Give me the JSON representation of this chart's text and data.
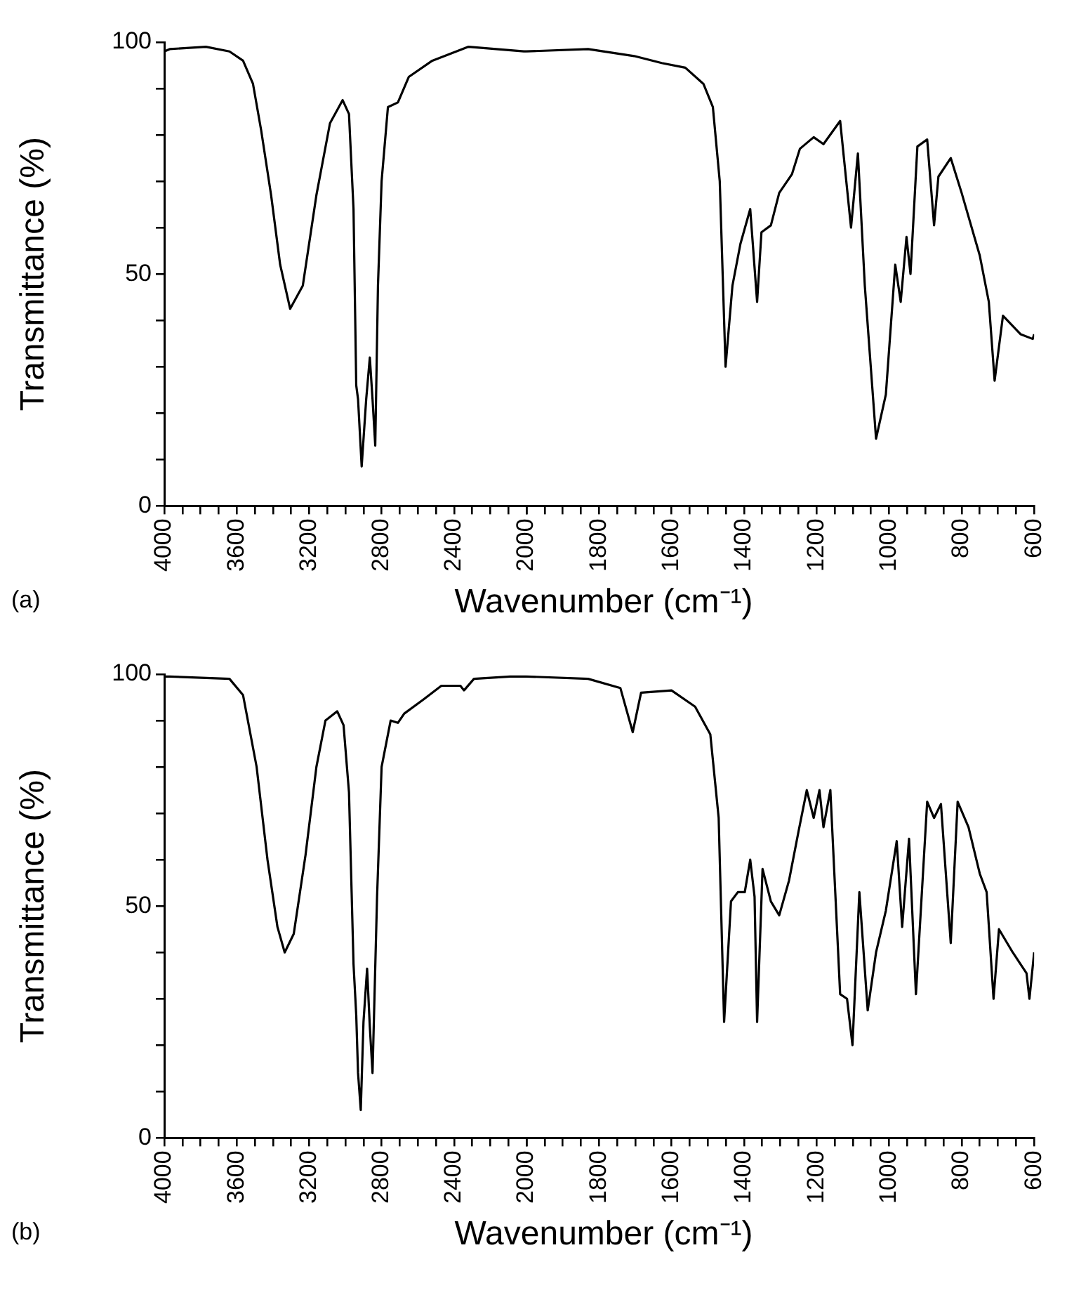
{
  "chart_data": [
    {
      "type": "line",
      "xlabel": "Wavenumber (cm⁻¹)",
      "ylabel": "Transmittance (%)",
      "annotations": [
        "(a)"
      ],
      "grid": false,
      "xlim": [
        4000,
        2000
      ],
      "ylim": [
        0,
        100
      ],
      "xticks": [
        4000,
        {
          "value": 3900,
          "label": null
        },
        {
          "value": 3800,
          "label": null
        },
        {
          "value": 3700,
          "label": null
        },
        3600,
        {
          "value": 3500,
          "label": null
        },
        {
          "value": 3400,
          "label": null
        },
        {
          "value": 3300,
          "label": null
        },
        3200,
        {
          "value": 3100,
          "label": null
        },
        {
          "value": 3000,
          "label": null
        },
        {
          "value": 2900,
          "label": null
        },
        2800,
        {
          "value": 2700,
          "label": null
        },
        {
          "value": 2600,
          "label": null
        },
        {
          "value": 2500,
          "label": null
        },
        2400,
        {
          "value": 2300,
          "label": null
        },
        {
          "value": 2200,
          "label": null
        },
        {
          "value": 2100,
          "label": null
        },
        2000
      ],
      "yticks": [
        0,
        {
          "value": 10,
          "label": null
        },
        {
          "value": 20,
          "label": null
        },
        {
          "value": 30,
          "label": null
        },
        {
          "value": 40,
          "label": null
        },
        50,
        {
          "value": 60,
          "label": null
        },
        {
          "value": 70,
          "label": null
        },
        {
          "value": 80,
          "label": null
        },
        {
          "value": 90,
          "label": null
        },
        100
      ],
      "series": [
        {
          "color": "#000000",
          "x": [
            4000,
            3970,
            3770,
            3640,
            3565,
            3510,
            3465,
            3410,
            3360,
            3305,
            3235,
            3160,
            3085,
            3015,
            2980,
            2955,
            2940,
            2930,
            2910,
            2885,
            2865,
            2850,
            2835,
            2820,
            2800,
            2765,
            2710,
            2650,
            2520,
            2320,
            2015,
            2000
          ],
          "values": [
            98,
            98.5,
            99,
            98,
            96,
            91,
            81,
            67,
            52,
            42.5,
            47.5,
            67,
            82.5,
            87.5,
            84.5,
            64,
            26,
            23,
            8.5,
            23,
            32,
            23,
            13,
            47.5,
            70,
            86,
            87,
            92.5,
            96,
            99,
            98,
            98
          ]
        }
      ]
    },
    {
      "type": "line",
      "tick_labels": "x",
      "grid": false,
      "xlim": [
        2000,
        600
      ],
      "ylim": [
        0,
        100
      ],
      "xticks": [
        {
          "value": 2000,
          "label": null
        },
        {
          "value": 1950,
          "label": null
        },
        {
          "value": 1900,
          "label": null
        },
        {
          "value": 1850,
          "label": null
        },
        1800,
        {
          "value": 1750,
          "label": null
        },
        {
          "value": 1700,
          "label": null
        },
        {
          "value": 1650,
          "label": null
        },
        1600,
        {
          "value": 1550,
          "label": null
        },
        {
          "value": 1500,
          "label": null
        },
        {
          "value": 1450,
          "label": null
        },
        1400,
        {
          "value": 1350,
          "label": null
        },
        {
          "value": 1300,
          "label": null
        },
        {
          "value": 1250,
          "label": null
        },
        1200,
        {
          "value": 1150,
          "label": null
        },
        {
          "value": 1100,
          "label": null
        },
        {
          "value": 1050,
          "label": null
        },
        1000,
        {
          "value": 950,
          "label": null
        },
        {
          "value": 900,
          "label": null
        },
        {
          "value": 850,
          "label": null
        },
        800,
        {
          "value": 750,
          "label": null
        },
        {
          "value": 700,
          "label": null
        },
        {
          "value": 650,
          "label": null
        },
        600
      ],
      "series": [
        {
          "color": "#000000",
          "x": [
            2000,
            1830,
            1703,
            1627,
            1562,
            1512,
            1486,
            1467,
            1451,
            1432,
            1410,
            1383,
            1364,
            1352,
            1326,
            1303,
            1268,
            1246,
            1208,
            1181,
            1135,
            1105,
            1086,
            1067,
            1036,
            1009,
            983,
            968,
            952,
            941,
            922,
            895,
            876,
            864,
            830,
            800,
            750,
            725,
            709,
            686,
            637,
            604,
            600
          ],
          "values": [
            98,
            98.5,
            97,
            95.5,
            94.5,
            91,
            86,
            70,
            30,
            47.5,
            56.5,
            64,
            44,
            59,
            60.5,
            67.5,
            71.5,
            77,
            79.5,
            78,
            83,
            60,
            76,
            47.5,
            14.5,
            24,
            52,
            44,
            58,
            50,
            77.5,
            79,
            60.5,
            71,
            75,
            67.5,
            54,
            44,
            27,
            41,
            37,
            36,
            37
          ]
        }
      ]
    },
    {
      "type": "line",
      "xlabel": "Wavenumber (cm⁻¹)",
      "ylabel": "Transmittance (%)",
      "annotations": [
        "(b)"
      ],
      "grid": false,
      "xlim": [
        4000,
        2000
      ],
      "ylim": [
        0,
        100
      ],
      "xticks": [
        4000,
        {
          "value": 3900,
          "label": null
        },
        {
          "value": 3800,
          "label": null
        },
        {
          "value": 3700,
          "label": null
        },
        3600,
        {
          "value": 3500,
          "label": null
        },
        {
          "value": 3400,
          "label": null
        },
        {
          "value": 3300,
          "label": null
        },
        3200,
        {
          "value": 3100,
          "label": null
        },
        {
          "value": 3000,
          "label": null
        },
        {
          "value": 2900,
          "label": null
        },
        2800,
        {
          "value": 2700,
          "label": null
        },
        {
          "value": 2600,
          "label": null
        },
        {
          "value": 2500,
          "label": null
        },
        2400,
        {
          "value": 2300,
          "label": null
        },
        {
          "value": 2200,
          "label": null
        },
        {
          "value": 2100,
          "label": null
        },
        2000
      ],
      "yticks": [
        0,
        {
          "value": 10,
          "label": null
        },
        {
          "value": 20,
          "label": null
        },
        {
          "value": 30,
          "label": null
        },
        {
          "value": 40,
          "label": null
        },
        50,
        {
          "value": 60,
          "label": null
        },
        {
          "value": 70,
          "label": null
        },
        {
          "value": 80,
          "label": null
        },
        {
          "value": 90,
          "label": null
        },
        100
      ],
      "series": [
        {
          "color": "#000000",
          "x": [
            4000,
            3970,
            3640,
            3565,
            3490,
            3430,
            3375,
            3335,
            3285,
            3220,
            3160,
            3110,
            3045,
            3010,
            2980,
            2955,
            2940,
            2930,
            2915,
            2900,
            2880,
            2865,
            2850,
            2825,
            2800,
            2750,
            2710,
            2675,
            2570,
            2470,
            2365,
            2345,
            2290,
            2090,
            2000
          ],
          "values": [
            99.5,
            99.5,
            99,
            95.5,
            80,
            60,
            45.5,
            40,
            44,
            61,
            80,
            90,
            92,
            89,
            74.5,
            37.5,
            26.5,
            14,
            6,
            25,
            36.5,
            24,
            14,
            52,
            80,
            90,
            89.5,
            91.5,
            94.5,
            97.5,
            97.5,
            96.5,
            99,
            99.5,
            99.5
          ]
        }
      ]
    },
    {
      "type": "line",
      "tick_labels": "x",
      "grid": false,
      "xlim": [
        2000,
        600
      ],
      "ylim": [
        0,
        100
      ],
      "xticks": [
        {
          "value": 2000,
          "label": null
        },
        {
          "value": 1950,
          "label": null
        },
        {
          "value": 1900,
          "label": null
        },
        {
          "value": 1850,
          "label": null
        },
        1800,
        {
          "value": 1750,
          "label": null
        },
        {
          "value": 1700,
          "label": null
        },
        {
          "value": 1650,
          "label": null
        },
        1600,
        {
          "value": 1550,
          "label": null
        },
        {
          "value": 1500,
          "label": null
        },
        {
          "value": 1450,
          "label": null
        },
        1400,
        {
          "value": 1350,
          "label": null
        },
        {
          "value": 1300,
          "label": null
        },
        {
          "value": 1250,
          "label": null
        },
        1200,
        {
          "value": 1150,
          "label": null
        },
        {
          "value": 1100,
          "label": null
        },
        {
          "value": 1050,
          "label": null
        },
        1000,
        {
          "value": 950,
          "label": null
        },
        {
          "value": 900,
          "label": null
        },
        {
          "value": 850,
          "label": null
        },
        800,
        {
          "value": 750,
          "label": null
        },
        {
          "value": 700,
          "label": null
        },
        {
          "value": 650,
          "label": null
        },
        600
      ],
      "series": [
        {
          "color": "#000000",
          "x": [
            2000,
            1830,
            1741,
            1707,
            1684,
            1600,
            1535,
            1493,
            1470,
            1455,
            1436,
            1417,
            1398,
            1383,
            1371,
            1364,
            1349,
            1326,
            1303,
            1276,
            1250,
            1227,
            1208,
            1192,
            1181,
            1162,
            1135,
            1116,
            1101,
            1082,
            1059,
            1036,
            1009,
            979,
            964,
            945,
            926,
            895,
            876,
            857,
            830,
            811,
            781,
            750,
            731,
            712,
            697,
            659,
            621,
            613,
            600
          ],
          "values": [
            99.5,
            99,
            97,
            87.5,
            96,
            96.5,
            93,
            87,
            69,
            25,
            51,
            53,
            53,
            60,
            52,
            25,
            58,
            51,
            48,
            55.5,
            66,
            75,
            69,
            75,
            67,
            75,
            31,
            30,
            20,
            53,
            27.5,
            40,
            49,
            64,
            45.5,
            64.5,
            31,
            72.5,
            69,
            72,
            42,
            72.5,
            67,
            57,
            53,
            30,
            45,
            40,
            35.5,
            30,
            40
          ]
        }
      ]
    }
  ]
}
